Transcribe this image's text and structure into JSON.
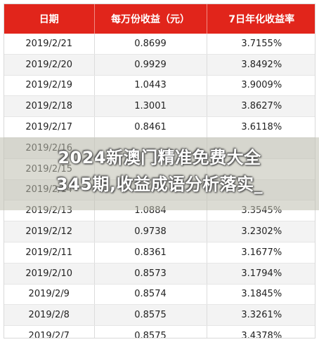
{
  "table": {
    "headers": [
      "日期",
      "每万份收益（元）",
      "7日年化收益率"
    ],
    "rows": [
      [
        "2019/2/21",
        "0.8699",
        "3.7155%"
      ],
      [
        "2019/2/20",
        "0.9929",
        "3.8492%"
      ],
      [
        "2019/2/19",
        "1.0443",
        "3.9009%"
      ],
      [
        "2019/2/18",
        "1.3001",
        "3.8627%"
      ],
      [
        "2019/2/17",
        "0.8461",
        "3.6118%"
      ],
      [
        "2019/2/16",
        "",
        ""
      ],
      [
        "2019/2/15",
        "",
        ""
      ],
      [
        "2019/2/14",
        "",
        ""
      ],
      [
        "2019/2/13",
        "1.0884",
        "3.3545%"
      ],
      [
        "2019/2/12",
        "0.9738",
        "3.2302%"
      ],
      [
        "2019/2/11",
        "0.8361",
        "3.1677%"
      ],
      [
        "2019/2/10",
        "0.8573",
        "3.1794%"
      ],
      [
        "2019/2/9",
        "0.8574",
        "3.1845%"
      ],
      [
        "2019/2/8",
        "0.8575",
        "3.3261%"
      ],
      [
        "2019/2/7",
        "0.8575",
        "3.4378%"
      ]
    ]
  },
  "watermark": {
    "line1": "2024新澳门精准免费大全",
    "line2": "345期,收益成语分析落实_"
  },
  "colors": {
    "header_bg": "#e1251b",
    "header_text": "#ffffff",
    "stripe": "#f3f3f3"
  }
}
